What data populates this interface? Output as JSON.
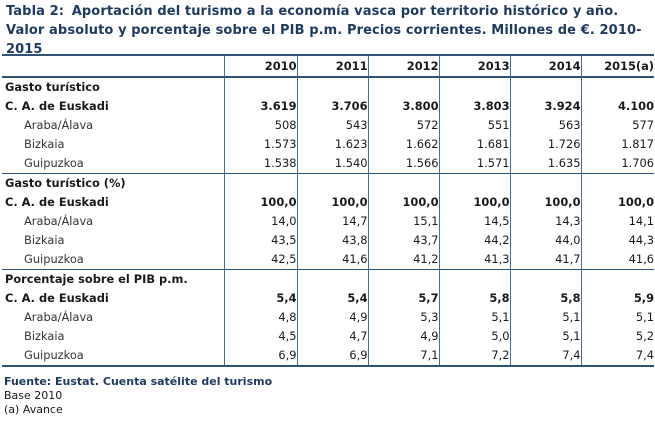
{
  "title": {
    "label": "Tabla 2:",
    "text": "Aportación del turismo a la economía vasca por territorio histórico y año. Valor absoluto y porcentaje sobre el PIB p.m. Precios corrientes. Millones de €. 2010-2015"
  },
  "table": {
    "years": [
      "2010",
      "2011",
      "2012",
      "2013",
      "2014",
      "2015(a)"
    ],
    "sections": [
      {
        "heading": "Gasto turístico",
        "rows": [
          {
            "label": "C. A. de Euskadi",
            "total": true,
            "values": [
              "3.619",
              "3.706",
              "3.800",
              "3.803",
              "3.924",
              "4.100"
            ]
          },
          {
            "label": "Araba/Álava",
            "values": [
              "508",
              "543",
              "572",
              "551",
              "563",
              "577"
            ]
          },
          {
            "label": "Bizkaia",
            "values": [
              "1.573",
              "1.623",
              "1.662",
              "1.681",
              "1.726",
              "1.817"
            ]
          },
          {
            "label": "Guipuzkoa",
            "values": [
              "1.538",
              "1.540",
              "1.566",
              "1.571",
              "1.635",
              "1.706"
            ]
          }
        ]
      },
      {
        "heading": "Gasto turístico (%)",
        "rows": [
          {
            "label": "C. A. de Euskadi",
            "total": true,
            "values": [
              "100,0",
              "100,0",
              "100,0",
              "100,0",
              "100,0",
              "100,0"
            ]
          },
          {
            "label": "Araba/Álava",
            "values": [
              "14,0",
              "14,7",
              "15,1",
              "14,5",
              "14,3",
              "14,1"
            ]
          },
          {
            "label": "Bizkaia",
            "values": [
              "43,5",
              "43,8",
              "43,7",
              "44,2",
              "44,0",
              "44,3"
            ]
          },
          {
            "label": "Guipuzkoa",
            "values": [
              "42,5",
              "41,6",
              "41,2",
              "41,3",
              "41,7",
              "41,6"
            ]
          }
        ]
      },
      {
        "heading": "Porcentaje sobre el PIB p.m.",
        "rows": [
          {
            "label": "C. A. de Euskadi",
            "total": true,
            "values": [
              "5,4",
              "5,4",
              "5,7",
              "5,8",
              "5,8",
              "5,9"
            ]
          },
          {
            "label": "Araba/Álava",
            "values": [
              "4,8",
              "4,9",
              "5,3",
              "5,1",
              "5,1",
              "5,1"
            ]
          },
          {
            "label": "Bizkaia",
            "values": [
              "4,5",
              "4,7",
              "4,9",
              "5,0",
              "5,1",
              "5,2"
            ]
          },
          {
            "label": "Guipuzkoa",
            "values": [
              "6,9",
              "6,9",
              "7,1",
              "7,2",
              "7,4",
              "7,4"
            ]
          }
        ]
      }
    ]
  },
  "footer": {
    "source": "Fuente: Eustat. Cuenta satélite del turismo",
    "base": "Base 2010",
    "note": "(a) Avance"
  }
}
